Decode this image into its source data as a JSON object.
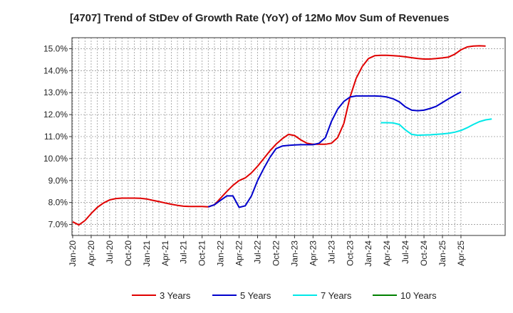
{
  "chart_data": {
    "type": "line",
    "title": "[4707]  Trend of StDev of Growth Rate (YoY) of 12Mo Mov Sum of Revenues",
    "xlabel": "",
    "ylabel": "",
    "ylim": [
      6.5,
      15.5
    ],
    "y_ticks": [
      7.0,
      8.0,
      9.0,
      10.0,
      11.0,
      12.0,
      13.0,
      14.0,
      15.0
    ],
    "y_tick_labels": [
      "7.0%",
      "8.0%",
      "9.0%",
      "10.0%",
      "11.0%",
      "12.0%",
      "13.0%",
      "14.0%",
      "15.0%"
    ],
    "x_tick_labels": [
      "Jan-20",
      "Apr-20",
      "Jul-20",
      "Oct-20",
      "Jan-21",
      "Apr-21",
      "Jul-21",
      "Oct-21",
      "Jan-22",
      "Apr-22",
      "Jul-22",
      "Oct-22",
      "Jan-23",
      "Apr-23",
      "Jul-23",
      "Oct-23",
      "Jan-24",
      "Apr-24",
      "Jul-24",
      "Oct-24",
      "Jan-25",
      "Apr-25"
    ],
    "grid": true,
    "legend_position": "bottom",
    "series": [
      {
        "name": "3 Years",
        "color": "#e00000",
        "start_index": 0,
        "values": [
          7.12,
          6.98,
          7.18,
          7.5,
          7.78,
          7.98,
          8.12,
          8.18,
          8.2,
          8.2,
          8.2,
          8.19,
          8.16,
          8.1,
          8.04,
          7.98,
          7.92,
          7.87,
          7.83,
          7.82,
          7.82,
          7.82,
          7.8,
          7.9,
          8.2,
          8.5,
          8.78,
          9.0,
          9.12,
          9.35,
          9.65,
          10.0,
          10.35,
          10.65,
          10.9,
          11.1,
          11.05,
          10.85,
          10.7,
          10.65,
          10.65,
          10.65,
          10.7,
          10.95,
          11.6,
          12.8,
          13.65,
          14.2,
          14.55,
          14.68,
          14.7,
          14.7,
          14.68,
          14.66,
          14.63,
          14.59,
          14.55,
          14.53,
          14.53,
          14.55,
          14.58,
          14.62,
          14.75,
          14.95,
          15.08,
          15.12,
          15.13,
          15.12
        ]
      },
      {
        "name": "5 Years",
        "color": "#0000cc",
        "start_index": 22,
        "values": [
          7.8,
          7.9,
          8.1,
          8.3,
          8.3,
          7.78,
          7.85,
          8.3,
          9.0,
          9.55,
          10.05,
          10.45,
          10.57,
          10.6,
          10.62,
          10.63,
          10.63,
          10.63,
          10.7,
          10.95,
          11.7,
          12.25,
          12.6,
          12.8,
          12.85,
          12.85,
          12.85,
          12.85,
          12.84,
          12.8,
          12.72,
          12.58,
          12.35,
          12.2,
          12.18,
          12.2,
          12.28,
          12.38,
          12.55,
          12.72,
          12.88,
          13.03
        ]
      },
      {
        "name": "7 Years",
        "color": "#00e8e8",
        "start_index": 50,
        "values": [
          11.63,
          11.63,
          11.62,
          11.55,
          11.3,
          11.1,
          11.06,
          11.07,
          11.08,
          11.1,
          11.12,
          11.15,
          11.2,
          11.28,
          11.4,
          11.55,
          11.68,
          11.76,
          11.8
        ]
      },
      {
        "name": "10 Years",
        "color": "#008000",
        "start_index": 0,
        "values": []
      }
    ]
  }
}
